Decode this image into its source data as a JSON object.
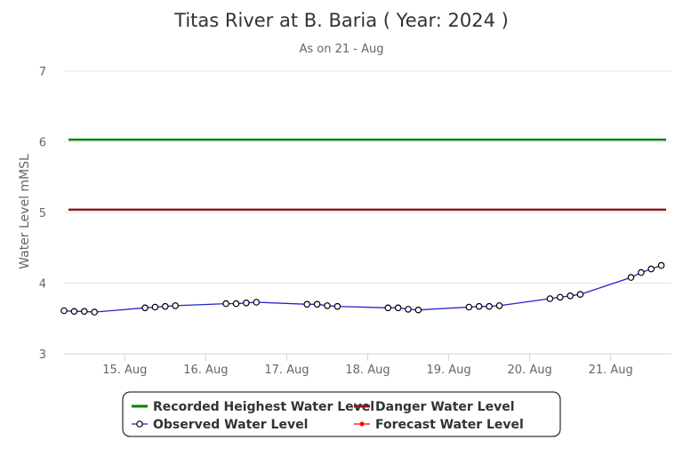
{
  "chart_data": {
    "type": "line",
    "title": "Titas River at B. Baria ( Year: 2024 )",
    "subtitle": "As on 21 - Aug",
    "ylabel": "Water Level mMSL",
    "xlabel": "",
    "ylim": [
      3,
      7
    ],
    "yticks": [
      "3",
      "4",
      "5",
      "6",
      "7"
    ],
    "xlim": [
      "14-Aug 06:00",
      "21-Aug 18:00"
    ],
    "xticks": [
      {
        "label": "15. Aug",
        "day": 15
      },
      {
        "label": "16. Aug",
        "day": 16
      },
      {
        "label": "17. Aug",
        "day": 17
      },
      {
        "label": "18. Aug",
        "day": 18
      },
      {
        "label": "19. Aug",
        "day": 19
      },
      {
        "label": "20. Aug",
        "day": 20
      },
      {
        "label": "21. Aug",
        "day": 21
      }
    ],
    "grid": true,
    "legend_placement": "bottom",
    "series": [
      {
        "name": "Recorded Heighest Water Level",
        "color": "#008000",
        "kind": "constant",
        "value": 6.03
      },
      {
        "name": "Danger Water Level",
        "color": "#8b1a1a",
        "kind": "constant",
        "value": 5.04
      },
      {
        "name": "Observed Water Level",
        "color": "#2222cc",
        "kind": "line",
        "points": [
          {
            "t": "14-Aug 06:00",
            "y": 3.61
          },
          {
            "t": "14-Aug 09:00",
            "y": 3.6
          },
          {
            "t": "14-Aug 12:00",
            "y": 3.6
          },
          {
            "t": "14-Aug 15:00",
            "y": 3.59
          },
          {
            "t": "15-Aug 06:00",
            "y": 3.65
          },
          {
            "t": "15-Aug 09:00",
            "y": 3.66
          },
          {
            "t": "15-Aug 12:00",
            "y": 3.67
          },
          {
            "t": "15-Aug 15:00",
            "y": 3.68
          },
          {
            "t": "16-Aug 06:00",
            "y": 3.71
          },
          {
            "t": "16-Aug 09:00",
            "y": 3.71
          },
          {
            "t": "16-Aug 12:00",
            "y": 3.72
          },
          {
            "t": "16-Aug 15:00",
            "y": 3.73
          },
          {
            "t": "17-Aug 06:00",
            "y": 3.7
          },
          {
            "t": "17-Aug 09:00",
            "y": 3.7
          },
          {
            "t": "17-Aug 12:00",
            "y": 3.68
          },
          {
            "t": "17-Aug 15:00",
            "y": 3.67
          },
          {
            "t": "18-Aug 06:00",
            "y": 3.65
          },
          {
            "t": "18-Aug 09:00",
            "y": 3.65
          },
          {
            "t": "18-Aug 12:00",
            "y": 3.63
          },
          {
            "t": "18-Aug 15:00",
            "y": 3.62
          },
          {
            "t": "19-Aug 06:00",
            "y": 3.66
          },
          {
            "t": "19-Aug 09:00",
            "y": 3.67
          },
          {
            "t": "19-Aug 12:00",
            "y": 3.67
          },
          {
            "t": "19-Aug 15:00",
            "y": 3.68
          },
          {
            "t": "20-Aug 06:00",
            "y": 3.78
          },
          {
            "t": "20-Aug 09:00",
            "y": 3.8
          },
          {
            "t": "20-Aug 12:00",
            "y": 3.82
          },
          {
            "t": "20-Aug 15:00",
            "y": 3.84
          },
          {
            "t": "21-Aug 06:00",
            "y": 4.08
          },
          {
            "t": "21-Aug 09:00",
            "y": 4.15
          },
          {
            "t": "21-Aug 12:00",
            "y": 4.2
          },
          {
            "t": "21-Aug 15:00",
            "y": 4.25
          }
        ]
      },
      {
        "name": "Forecast Water Level",
        "color": "#ff0000",
        "kind": "line",
        "points": []
      }
    ]
  }
}
